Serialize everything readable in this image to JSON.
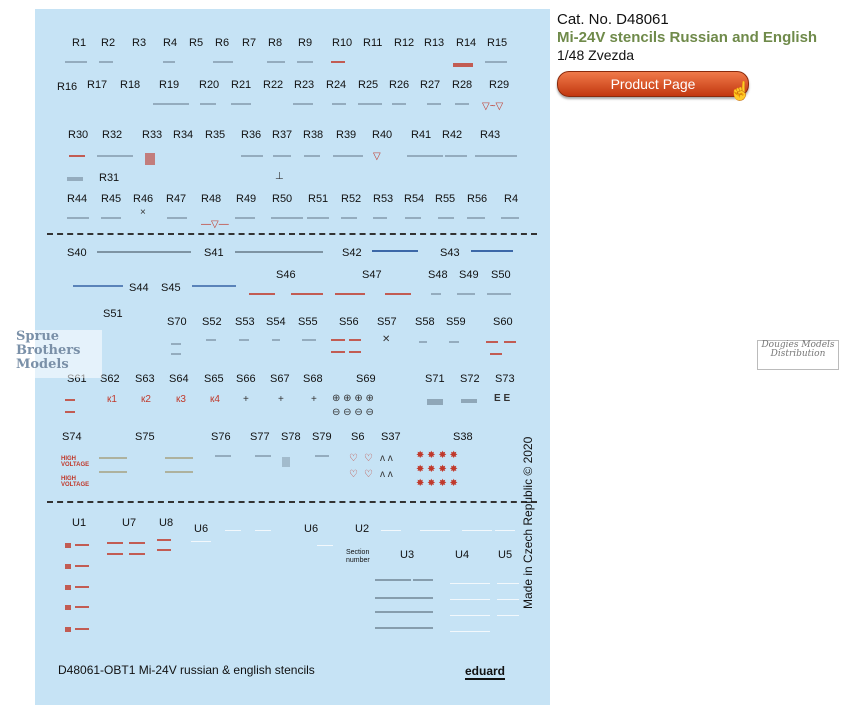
{
  "info": {
    "cat_no": "Cat. No. D48061",
    "title": "Mi-24V stencils Russian and English",
    "scale": "1/48 Zvezda",
    "button_label": "Product Page"
  },
  "sheet": {
    "rows": {
      "r1": [
        "R1",
        "R2",
        "R3",
        "R4",
        "R5",
        "R6",
        "R7",
        "R8",
        "R9",
        "R10",
        "R11",
        "R12",
        "R13",
        "R14",
        "R15"
      ],
      "r2": [
        "R16",
        "R17",
        "R18",
        "R19",
        "R20",
        "R21",
        "R22",
        "R23",
        "R24",
        "R25",
        "R26",
        "R27",
        "R28",
        "R29"
      ],
      "r3": [
        "R30",
        "R32",
        "R33",
        "R34",
        "R35",
        "R36",
        "R37",
        "R38",
        "R39",
        "R40",
        "R41",
        "R42",
        "R43"
      ],
      "r3b": [
        "R31"
      ],
      "r4": [
        "R44",
        "R45",
        "R46",
        "R47",
        "R48",
        "R49",
        "R50",
        "R51",
        "R52",
        "R53",
        "R54",
        "R55",
        "R56",
        "R4"
      ],
      "s1": [
        "S40",
        "S41",
        "S42",
        "S43"
      ],
      "s2": [
        "S44",
        "S45",
        "S46",
        "S47",
        "S48",
        "S49",
        "S50"
      ],
      "s3": [
        "S51",
        "S70",
        "S52",
        "S53",
        "S54",
        "S55",
        "S56",
        "S57",
        "S58",
        "S59",
        "S60"
      ],
      "s4": [
        "S61",
        "S62",
        "S63",
        "S64",
        "S65",
        "S66",
        "S67",
        "S68",
        "S69",
        "S71",
        "S72",
        "S73"
      ],
      "s5": [
        "S74",
        "S75",
        "S76",
        "S77",
        "S78",
        "S79",
        "S6",
        "S37",
        "S38"
      ],
      "u1": [
        "U1",
        "U7",
        "U8",
        "U6",
        "U6",
        "U2"
      ],
      "u2": [
        "U3",
        "U4",
        "U5"
      ]
    },
    "section_number": "Section number",
    "high_voltage": "HIGH VOLTAGE",
    "sheet_code": "D48061-OBT1 Mi-24V russian & english stencils",
    "brand": "eduard",
    "made_in": "Made in Czech Republic © 2020"
  },
  "watermarks": {
    "left": "Sprue Brothers Models",
    "right": "Dougies Models Distribution"
  },
  "colors": {
    "sheet_bg": "#c6e3f5",
    "title_green": "#6f8a4a",
    "button_orange": "#d9501f"
  }
}
